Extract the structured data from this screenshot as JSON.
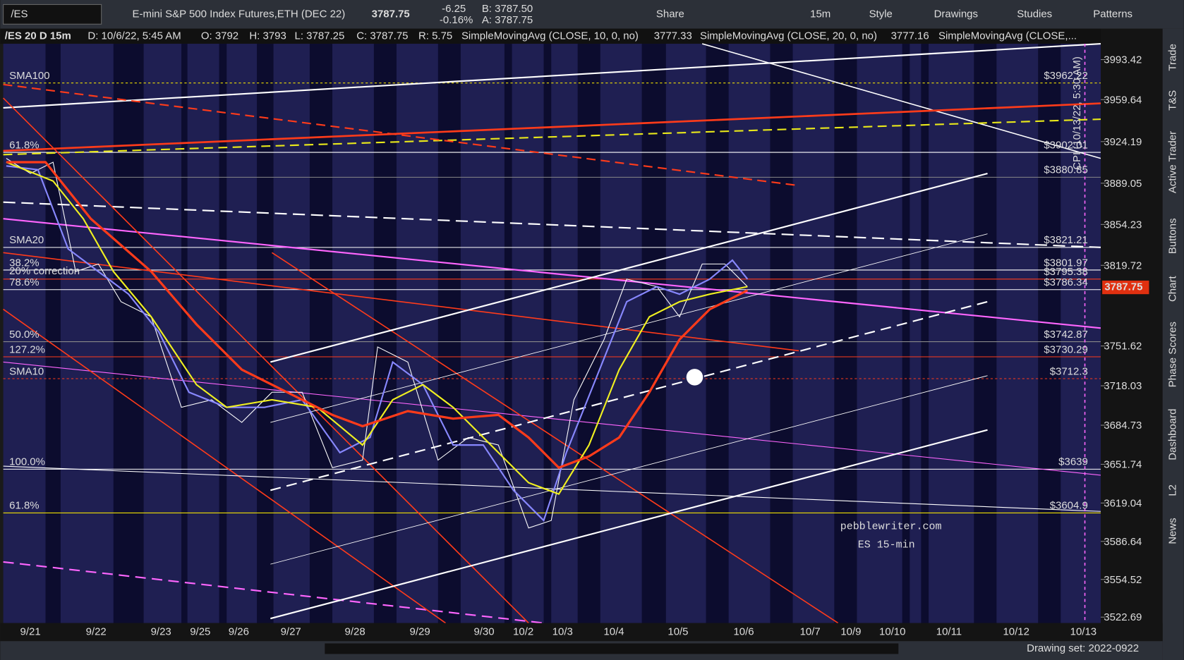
{
  "toolbar": {
    "symbol": "/ES",
    "description": "E-mini S&P 500 Index Futures,ETH (DEC 22)",
    "last": "3787.75",
    "change": "-6.25",
    "change_pct": "-0.16%",
    "bid": "B: 3787.50",
    "ask": "A: 3787.75",
    "buttons": [
      "Share",
      "15m",
      "Style",
      "Drawings",
      "Studies",
      "Patterns"
    ]
  },
  "study_bar": {
    "chart": "/ES 20 D 15m",
    "date": "D: 10/6/22, 5:45 AM",
    "open": "O: 3792",
    "high": "H: 3793",
    "low": "L: 3787.25",
    "close": "C: 3787.75",
    "range": "R: 5.75",
    "sma10": "SimpleMovingAvg (CLOSE, 10, 0, no)",
    "sma10_value": "3777.33",
    "sma20": "SimpleMovingAvg (CLOSE, 20, 0, no)",
    "sma20_value": "3777.16",
    "sma100": "SimpleMovingAvg (CLOSE,..."
  },
  "price_axis": {
    "ylim": [
      3517.7,
      4006.8
    ],
    "ticks": [
      3993.42,
      3959.64,
      3924.19,
      3889.05,
      3854.23,
      3819.72,
      3751.62,
      3718.03,
      3684.73,
      3651.74,
      3619.04,
      3586.64,
      3554.52,
      3522.69
    ]
  },
  "price_tag": "3787.75",
  "left_labels": [
    "SMA100",
    "61.8%",
    "SMA20",
    "38.2%",
    "20% correction",
    "78.6%",
    "50.0%",
    "127.2%",
    "SMA10",
    "100.0%",
    "61.8%"
  ],
  "right_labels": [
    "$3962.22",
    "$3902.01",
    "$3880.85",
    "$3821.21",
    "$3801.97",
    "$3795.38",
    "$3786.34",
    "$3742.87",
    "$3730.29",
    "$3712.3",
    "$3639",
    "$3604.9"
  ],
  "dates": [
    "9/21",
    "9/22",
    "9/23",
    "9/25",
    "9/26",
    "9/27",
    "9/28",
    "9/29",
    "9/30",
    "10/2",
    "10/3",
    "10/4",
    "10/5",
    "10/6",
    "10/7",
    "10/9",
    "10/10",
    "10/11",
    "10/12",
    "10/13"
  ],
  "event": "CPI (10/13/22, 5:30 AM)",
  "watermark": [
    "pebblewriter.com",
    "ES 15-min"
  ],
  "sidebar": [
    "Trade",
    "T&S",
    "Active Trader",
    "Buttons",
    "Chart",
    "Phase Scores",
    "Dashboard",
    "L2",
    "News"
  ],
  "footer": "Drawing set: 2022-0922"
}
